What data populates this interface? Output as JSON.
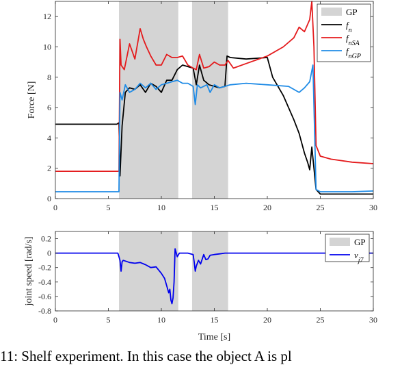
{
  "caption": "11: Shelf experiment. In this case the object A is pl",
  "chart_data": [
    {
      "type": "line",
      "ylabel": "Force [N]",
      "xlim": [
        0,
        30
      ],
      "ylim": [
        0,
        13
      ],
      "xticks": [
        0,
        5,
        10,
        15,
        20,
        25,
        30
      ],
      "yticks": [
        0,
        2,
        4,
        6,
        8,
        10,
        12
      ],
      "shaded_regions": [
        [
          6,
          11.6
        ],
        [
          12.9,
          16.3
        ]
      ],
      "shaded_color": "#d4d4d4",
      "legend": {
        "placement": "top-right",
        "entries": [
          "GP",
          "f_n",
          "f_nSA",
          "f_nGP"
        ]
      },
      "series": [
        {
          "name": "f_n",
          "color": "#000000",
          "x": [
            0,
            5.8,
            6.0,
            6.1,
            6.3,
            6.6,
            7.0,
            7.5,
            8.0,
            8.5,
            9.0,
            9.5,
            10.0,
            10.5,
            11.0,
            11.5,
            12.0,
            12.5,
            13.0,
            13.3,
            13.6,
            14.0,
            14.5,
            15.0,
            15.5,
            16.0,
            16.2,
            16.5,
            18.0,
            20.0,
            20.5,
            21.5,
            22.5,
            23.0,
            23.5,
            23.8,
            24.0,
            24.2,
            24.4,
            24.6,
            25.0,
            26.0,
            28.0,
            30.0
          ],
          "y": [
            4.9,
            4.9,
            5.0,
            1.5,
            4.8,
            7.0,
            7.3,
            7.2,
            7.5,
            7.0,
            7.6,
            7.4,
            7.0,
            7.8,
            7.8,
            8.5,
            8.8,
            8.7,
            8.6,
            7.5,
            8.8,
            7.8,
            7.5,
            7.4,
            7.3,
            7.4,
            9.4,
            9.3,
            9.2,
            9.3,
            8.0,
            6.8,
            5.2,
            4.3,
            3.0,
            2.4,
            1.9,
            3.4,
            2.0,
            0.6,
            0.3,
            0.3,
            0.3,
            0.3
          ]
        },
        {
          "name": "f_nSA",
          "color": "#e41a1c",
          "x": [
            0,
            5.8,
            6.0,
            6.1,
            6.2,
            6.5,
            7.0,
            7.5,
            8.0,
            8.3,
            8.6,
            9.0,
            9.5,
            10.0,
            10.5,
            11.0,
            11.5,
            12.0,
            12.5,
            13.0,
            13.3,
            13.6,
            14.0,
            14.5,
            15.0,
            15.5,
            16.0,
            16.3,
            16.8,
            18.0,
            20.0,
            21.5,
            22.5,
            23.0,
            23.5,
            24.0,
            24.2,
            24.4,
            24.6,
            25.0,
            26.0,
            28.0,
            30.0
          ],
          "y": [
            1.8,
            1.8,
            1.8,
            10.5,
            8.8,
            8.5,
            10.2,
            9.2,
            11.2,
            10.5,
            10.0,
            9.4,
            8.8,
            8.8,
            9.5,
            9.3,
            9.3,
            9.4,
            8.8,
            8.6,
            8.5,
            9.5,
            8.6,
            8.7,
            9.0,
            8.8,
            8.8,
            9.1,
            8.6,
            8.9,
            9.4,
            10.0,
            10.6,
            11.3,
            11.0,
            11.8,
            13.0,
            10.0,
            3.5,
            2.8,
            2.6,
            2.4,
            2.3
          ]
        },
        {
          "name": "f_nGP",
          "color": "#1f8be6",
          "x": [
            0,
            5.8,
            6.0,
            6.1,
            6.3,
            6.6,
            7.0,
            7.5,
            8.0,
            8.5,
            9.0,
            9.5,
            10.0,
            10.5,
            11.0,
            11.5,
            12.0,
            12.5,
            13.0,
            13.2,
            13.4,
            13.7,
            14.0,
            14.3,
            14.6,
            15.0,
            15.5,
            16.0,
            16.5,
            18.0,
            20.0,
            22.0,
            23.0,
            23.5,
            24.0,
            24.3,
            24.6,
            25.0,
            26.0,
            28.0,
            30.0
          ],
          "y": [
            0.45,
            0.45,
            0.45,
            7.0,
            6.5,
            7.5,
            7.0,
            7.2,
            7.6,
            7.3,
            7.6,
            7.2,
            7.5,
            7.6,
            7.7,
            7.8,
            7.6,
            7.6,
            7.4,
            6.2,
            7.5,
            7.3,
            7.4,
            7.5,
            7.0,
            7.5,
            7.3,
            7.4,
            7.5,
            7.6,
            7.5,
            7.4,
            7.0,
            7.3,
            7.7,
            8.8,
            0.6,
            0.45,
            0.45,
            0.45,
            0.5
          ]
        }
      ]
    },
    {
      "type": "line",
      "ylabel": "joint speed [rad/s]",
      "xlabel": "Time [s]",
      "xlim": [
        0,
        30
      ],
      "ylim": [
        -0.8,
        0.3
      ],
      "xticks": [
        0,
        5,
        10,
        15,
        20,
        25,
        30
      ],
      "yticks": [
        -0.8,
        -0.6,
        -0.4,
        -0.2,
        0,
        0.2
      ],
      "shaded_regions": [
        [
          6,
          11.6
        ],
        [
          12.9,
          16.3
        ]
      ],
      "shaded_color": "#d4d4d4",
      "legend": {
        "placement": "top-right",
        "entries": [
          "GP",
          "v_j7"
        ]
      },
      "series": [
        {
          "name": "v_j7",
          "color": "#0000ee",
          "x": [
            0,
            5.9,
            6.0,
            6.1,
            6.2,
            6.3,
            6.4,
            6.6,
            7.0,
            7.5,
            8.0,
            8.5,
            9.0,
            9.5,
            10.0,
            10.3,
            10.5,
            10.7,
            10.8,
            10.9,
            11.0,
            11.1,
            11.2,
            11.3,
            11.5,
            11.7,
            12.0,
            12.5,
            13.0,
            13.1,
            13.2,
            13.3,
            13.5,
            13.7,
            14.0,
            14.2,
            14.4,
            14.6,
            15.0,
            15.5,
            16.0,
            17.0,
            20.0,
            25.0,
            30.0
          ],
          "y": [
            0,
            0,
            -0.05,
            -0.1,
            -0.25,
            -0.12,
            -0.1,
            -0.11,
            -0.13,
            -0.14,
            -0.13,
            -0.16,
            -0.2,
            -0.19,
            -0.28,
            -0.35,
            -0.45,
            -0.55,
            -0.5,
            -0.65,
            -0.7,
            -0.62,
            -0.4,
            0.06,
            -0.05,
            0,
            0,
            0,
            -0.02,
            -0.12,
            -0.25,
            -0.18,
            -0.1,
            -0.15,
            -0.02,
            -0.09,
            -0.08,
            -0.03,
            -0.02,
            -0.01,
            0,
            0,
            0,
            0,
            0
          ]
        }
      ]
    }
  ]
}
